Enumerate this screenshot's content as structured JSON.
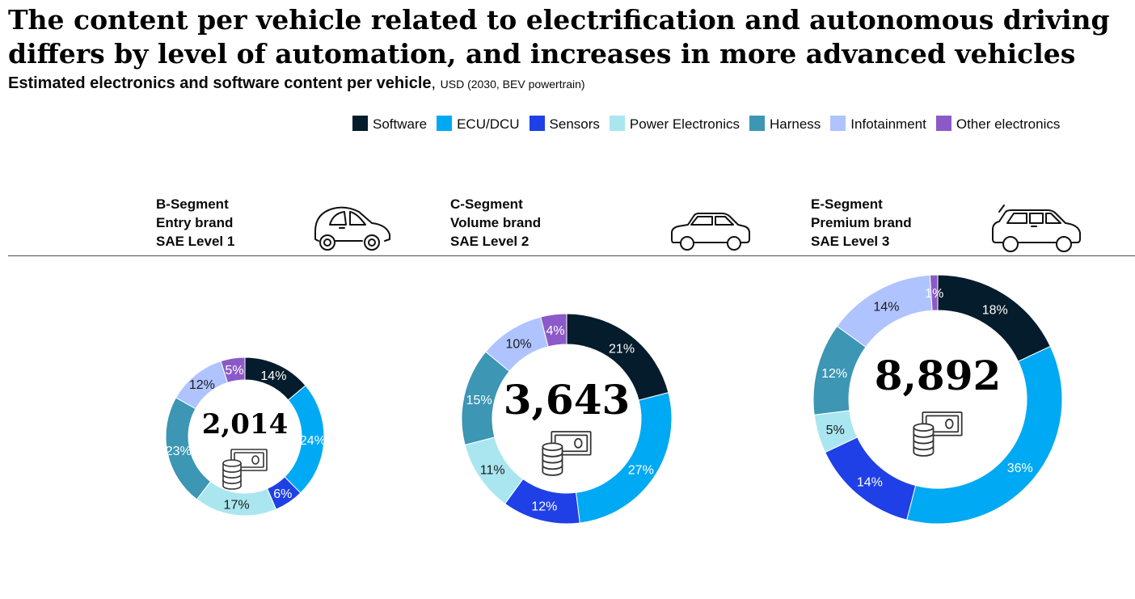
{
  "header": {
    "title": "The content per vehicle related to electrification and autonomous driving differs by level of automation, and increases in more advanced vehicles",
    "subtitle_main": "Estimated electronics and software content per vehicle",
    "subtitle_sep": ", ",
    "subtitle_unit": "USD (2030, BEV powertrain)"
  },
  "legend": [
    {
      "label": "Software",
      "color": "#051c2c"
    },
    {
      "label": "ECU/DCU",
      "color": "#00a9f4"
    },
    {
      "label": "Sensors",
      "color": "#1f40e6"
    },
    {
      "label": "Power Electronics",
      "color": "#aae6f0"
    },
    {
      "label": "Harness",
      "color": "#3c96b4"
    },
    {
      "label": "Infotainment",
      "color": "#afc3ff"
    },
    {
      "label": "Other electronics",
      "color": "#8c5ac8"
    }
  ],
  "segments": [
    {
      "label": "B-Segment\nEntry brand\nSAE Level 1",
      "icon": "hatchback-car-icon"
    },
    {
      "label": "C-Segment\nVolume brand\nSAE Level 2",
      "icon": "sedan-car-icon"
    },
    {
      "label": "E-Segment\nPremium brand\nSAE Level 3",
      "icon": "suv-car-icon"
    }
  ],
  "chart_data": [
    {
      "type": "pie",
      "donut": true,
      "total": "2,014",
      "categories": [
        "Software",
        "ECU/DCU",
        "Sensors",
        "Power Electronics",
        "Harness",
        "Infotainment",
        "Other electronics"
      ],
      "values": [
        14,
        24,
        6,
        17,
        23,
        12,
        5
      ],
      "labels": [
        "14%",
        "24%",
        "6%",
        "17%",
        "23%",
        "12%",
        "5%"
      ],
      "center_icon": "money-coins-icon"
    },
    {
      "type": "pie",
      "donut": true,
      "total": "3,643",
      "categories": [
        "Software",
        "ECU/DCU",
        "Sensors",
        "Power Electronics",
        "Harness",
        "Infotainment",
        "Other electronics"
      ],
      "values": [
        21,
        27,
        12,
        11,
        15,
        10,
        4
      ],
      "labels": [
        "21%",
        "27%",
        "12%",
        "11%",
        "15%",
        "10%",
        "4%"
      ],
      "center_icon": "money-coins-icon"
    },
    {
      "type": "pie",
      "donut": true,
      "total": "8,892",
      "categories": [
        "Software",
        "ECU/DCU",
        "Sensors",
        "Power Electronics",
        "Harness",
        "Infotainment",
        "Other electronics"
      ],
      "values": [
        18,
        36,
        14,
        5,
        12,
        14,
        1
      ],
      "labels": [
        "18%",
        "36%",
        "14%",
        "5%",
        "12%",
        "14%",
        "1%"
      ],
      "center_icon": "money-coins-icon"
    }
  ]
}
